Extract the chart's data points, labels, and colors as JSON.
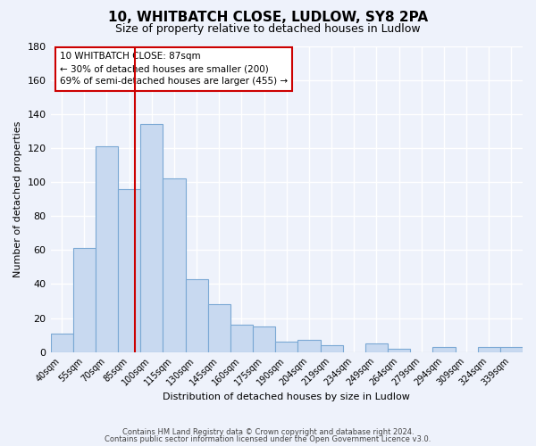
{
  "title": "10, WHITBATCH CLOSE, LUDLOW, SY8 2PA",
  "subtitle": "Size of property relative to detached houses in Ludlow",
  "xlabel": "Distribution of detached houses by size in Ludlow",
  "ylabel": "Number of detached properties",
  "bar_labels": [
    "40sqm",
    "55sqm",
    "70sqm",
    "85sqm",
    "100sqm",
    "115sqm",
    "130sqm",
    "145sqm",
    "160sqm",
    "175sqm",
    "190sqm",
    "204sqm",
    "219sqm",
    "234sqm",
    "249sqm",
    "264sqm",
    "279sqm",
    "294sqm",
    "309sqm",
    "324sqm",
    "339sqm"
  ],
  "bar_values": [
    11,
    61,
    121,
    96,
    134,
    102,
    43,
    28,
    16,
    15,
    6,
    7,
    4,
    0,
    5,
    2,
    0,
    3,
    0,
    3,
    3
  ],
  "bar_color": "#c8d9f0",
  "bar_edge_color": "#7aa8d4",
  "ylim": [
    0,
    180
  ],
  "yticks": [
    0,
    20,
    40,
    60,
    80,
    100,
    120,
    140,
    160,
    180
  ],
  "vline_x": 3.75,
  "vline_color": "#cc0000",
  "annotation_title": "10 WHITBATCH CLOSE: 87sqm",
  "annotation_line1": "← 30% of detached houses are smaller (200)",
  "annotation_line2": "69% of semi-detached houses are larger (455) →",
  "footnote1": "Contains HM Land Registry data © Crown copyright and database right 2024.",
  "footnote2": "Contains public sector information licensed under the Open Government Licence v3.0.",
  "background_color": "#eef2fb"
}
